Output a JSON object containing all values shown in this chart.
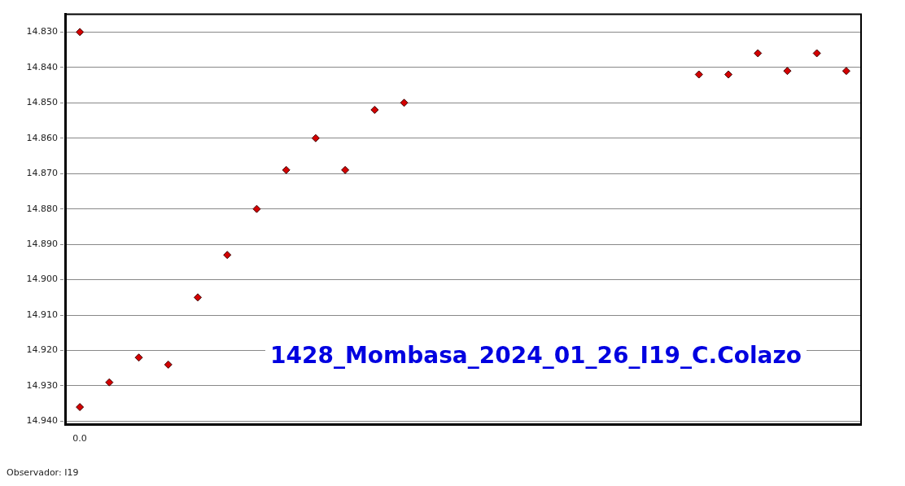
{
  "chart_data": {
    "type": "scatter",
    "categories": [
      "0.0",
      null,
      null,
      null,
      null,
      null,
      null,
      null,
      null,
      null,
      null,
      null,
      null,
      null,
      null,
      null,
      null,
      null,
      null,
      null,
      null,
      null,
      null,
      null,
      null,
      null,
      null
    ],
    "series": [
      {
        "color": "#d40000",
        "values": [
          14.936,
          14.929,
          14.922,
          14.924,
          14.905,
          14.893,
          14.88,
          14.869,
          14.86,
          14.869,
          14.852,
          14.85,
          null,
          null,
          null,
          null,
          null,
          null,
          null,
          null,
          null,
          14.842,
          14.842,
          14.836,
          14.841,
          14.836,
          14.841
        ]
      },
      {
        "color": "#d40000",
        "values": [
          14.83,
          null,
          null,
          null,
          null,
          null,
          null,
          null,
          null,
          null,
          null,
          null,
          null,
          null,
          null,
          null,
          null,
          null,
          null,
          null,
          null,
          null,
          null,
          null,
          null,
          null,
          null
        ]
      }
    ],
    "ylim": [
      14.941,
      14.825
    ],
    "yticks": [
      {
        "value": 14.83,
        "label": "14.830"
      },
      {
        "value": 14.84,
        "label": "14.840"
      },
      {
        "value": 14.85,
        "label": "14.850"
      },
      {
        "value": 14.86,
        "label": "14.860"
      },
      {
        "value": 14.87,
        "label": "14.870"
      },
      {
        "value": 14.88,
        "label": "14.880"
      },
      {
        "value": 14.89,
        "label": "14.890"
      },
      {
        "value": 14.9,
        "label": "14.900"
      },
      {
        "value": 14.91,
        "label": "14.910"
      },
      {
        "value": 14.92,
        "label": "14.920"
      },
      {
        "value": 14.93,
        "label": "14.930"
      },
      {
        "value": 14.94,
        "label": "14.940"
      }
    ],
    "grid": "y",
    "legend": false,
    "marker": "diamond",
    "annotations": [
      "1428_Mombasa_2024_01_26_I19_C.Colazo",
      "Observador: I19"
    ]
  }
}
